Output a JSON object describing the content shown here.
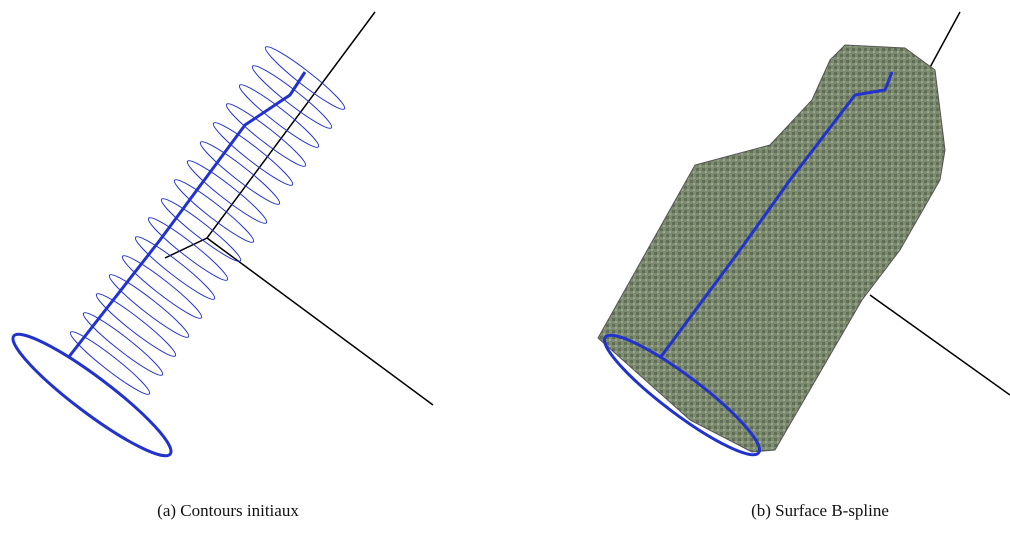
{
  "figures": [
    {
      "caption": "(a) Contours initiaux"
    },
    {
      "caption": "(b) Surface B-spline"
    }
  ]
}
